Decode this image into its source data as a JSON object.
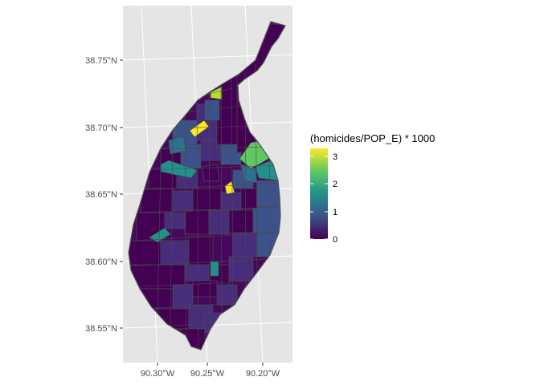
{
  "map": {
    "panel_background": "#e5e5e5",
    "grid_color": "#ffffff",
    "tract_border": "#4a4a4a",
    "outline_color": "#555555",
    "y_ticks": [
      "38.75°N",
      "38.70°N",
      "38.65°N",
      "38.60°N",
      "38.55°N"
    ],
    "x_ticks": [
      "90.30°W",
      "90.25°W",
      "90.20°W"
    ]
  },
  "legend": {
    "title": "(homicides/POP_E) * 1000",
    "breaks": [
      "3",
      "2",
      "1",
      "0"
    ],
    "colors": [
      "#fde725",
      "#5ec962",
      "#21918c",
      "#3b528b",
      "#440154"
    ]
  },
  "palette": {
    "deep": "#440154",
    "purple": "#46085c",
    "indigo": "#472d7b",
    "blue": "#3b528b",
    "slate": "#2c728e",
    "teal": "#21918c",
    "green": "#5ec962",
    "lime": "#b5de2b",
    "yellow": "#fde725"
  }
}
